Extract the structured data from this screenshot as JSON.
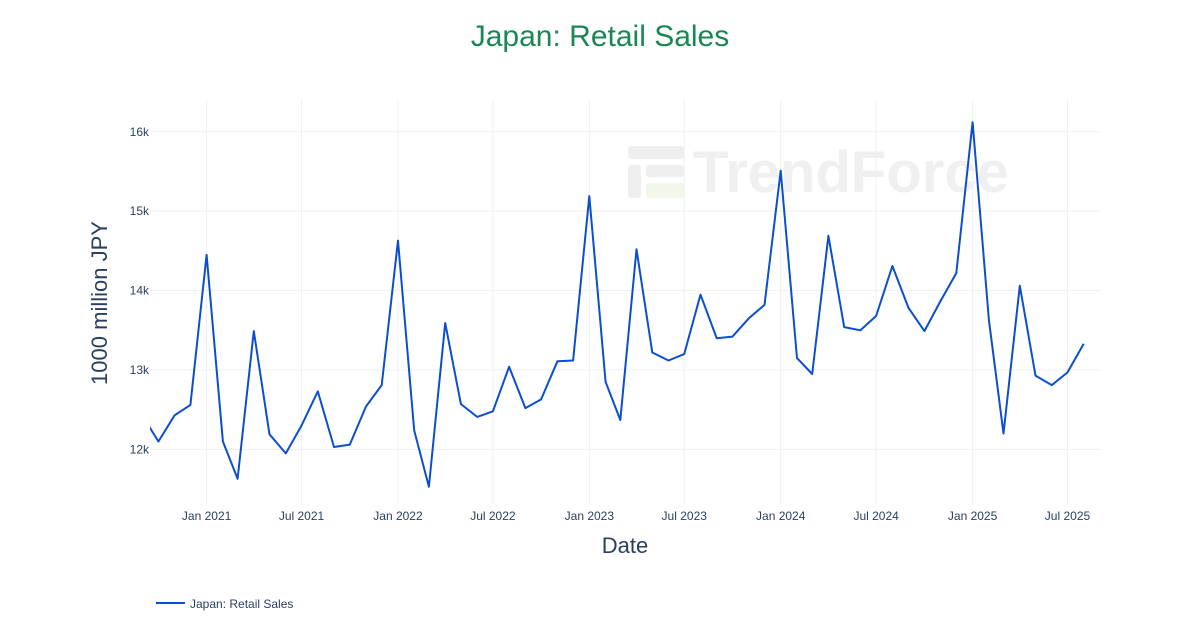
{
  "chart_data": {
    "type": "line",
    "title": "Japan: Retail Sales",
    "xlabel": "Date",
    "ylabel": "1000 million JPY",
    "watermark": "TrendForce",
    "colors": {
      "title": "#1a8754",
      "line": "#0b4fcf",
      "grid": "#eef0f4"
    },
    "x_range": [
      "2020-09-15",
      "2025-09-01"
    ],
    "ylim": [
      11300,
      16400
    ],
    "y_ticks": [
      12000,
      13000,
      14000,
      15000,
      16000
    ],
    "y_tick_labels": [
      "12k",
      "13k",
      "14k",
      "15k",
      "16k"
    ],
    "x_ticks": [
      "2021-01-01",
      "2021-07-01",
      "2022-01-01",
      "2022-07-01",
      "2023-01-01",
      "2023-07-01",
      "2024-01-01",
      "2024-07-01",
      "2025-01-01",
      "2025-07-01"
    ],
    "x_tick_labels": [
      "Jan 2021",
      "Jul 2021",
      "Jan 2022",
      "Jul 2022",
      "Jan 2023",
      "Jul 2023",
      "Jan 2024",
      "Jul 2024",
      "Jan 2025",
      "Jul 2025"
    ],
    "grid": true,
    "legend_position": "bottom-left",
    "series": [
      {
        "name": "Japan: Retail Sales",
        "x": [
          "2020-09-01",
          "2020-10-01",
          "2020-11-01",
          "2020-12-01",
          "2021-01-01",
          "2021-02-01",
          "2021-03-01",
          "2021-04-01",
          "2021-05-01",
          "2021-06-01",
          "2021-07-01",
          "2021-08-01",
          "2021-09-01",
          "2021-10-01",
          "2021-11-01",
          "2021-12-01",
          "2022-01-01",
          "2022-02-01",
          "2022-03-01",
          "2022-04-01",
          "2022-05-01",
          "2022-06-01",
          "2022-07-01",
          "2022-08-01",
          "2022-09-01",
          "2022-10-01",
          "2022-11-01",
          "2022-12-01",
          "2023-01-01",
          "2023-02-01",
          "2023-03-01",
          "2023-04-01",
          "2023-05-01",
          "2023-06-01",
          "2023-07-01",
          "2023-08-01",
          "2023-09-01",
          "2023-10-01",
          "2023-11-01",
          "2023-12-01",
          "2024-01-01",
          "2024-02-01",
          "2024-03-01",
          "2024-04-01",
          "2024-05-01",
          "2024-06-01",
          "2024-07-01",
          "2024-08-01",
          "2024-09-01",
          "2024-10-01",
          "2024-11-01",
          "2024-12-01",
          "2025-01-01",
          "2025-02-01",
          "2025-03-01",
          "2025-04-01",
          "2025-05-01",
          "2025-06-01",
          "2025-07-01",
          "2025-08-01"
        ],
        "y": [
          12420,
          12100,
          12430,
          12560,
          14450,
          12100,
          11630,
          13490,
          12190,
          11950,
          12300,
          12730,
          12030,
          12060,
          12540,
          12810,
          14630,
          12240,
          11530,
          13590,
          12570,
          12410,
          12480,
          13040,
          12520,
          12630,
          13110,
          13120,
          15190,
          12850,
          12370,
          14520,
          13220,
          13120,
          13200,
          13950,
          13400,
          13420,
          13650,
          13820,
          15510,
          13150,
          12950,
          14690,
          13540,
          13500,
          13680,
          14310,
          13780,
          13490,
          13870,
          14220,
          16120,
          13630,
          12200,
          14060,
          12930,
          12810,
          12970,
          13330
        ]
      }
    ]
  },
  "legend": {
    "label": "Japan: Retail Sales"
  }
}
